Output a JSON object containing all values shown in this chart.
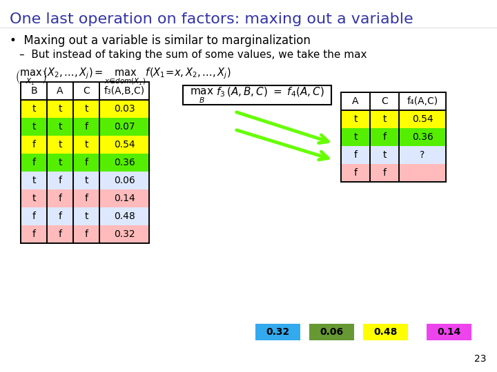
{
  "title": "One last operation on factors: maxing out a variable",
  "bullet1": "Maxing out a variable is similar to marginalization",
  "bullet2": "But instead of taking the sum of some values, we take the max",
  "title_color": "#3333aa",
  "bg_color": "#ffffff",
  "slide_number": "23",
  "left_table_headers": [
    "B",
    "A",
    "C",
    "f₃(A,B,C)"
  ],
  "left_table_rows": [
    [
      "t",
      "t",
      "t",
      "0.03"
    ],
    [
      "t",
      "t",
      "f",
      "0.07"
    ],
    [
      "f",
      "t",
      "t",
      "0.54"
    ],
    [
      "f",
      "t",
      "f",
      "0.36"
    ],
    [
      "t",
      "f",
      "t",
      "0.06"
    ],
    [
      "t",
      "f",
      "f",
      "0.14"
    ],
    [
      "f",
      "f",
      "t",
      "0.48"
    ],
    [
      "f",
      "f",
      "f",
      "0.32"
    ]
  ],
  "left_row_colors": [
    "#ffff00",
    "#55ee00",
    "#ffff00",
    "#55ee00",
    "#dde8ff",
    "#ffbbbb",
    "#dde8ff",
    "#ffbbbb"
  ],
  "right_table_headers": [
    "A",
    "C",
    "f₄(A,C)"
  ],
  "right_table_rows": [
    [
      "t",
      "t",
      "0.54"
    ],
    [
      "t",
      "f",
      "0.36"
    ],
    [
      "f",
      "t",
      "?"
    ],
    [
      "f",
      "f",
      ""
    ]
  ],
  "right_row_colors": [
    "#ffff00",
    "#55ee00",
    "#dde8ff",
    "#ffbbbb"
  ],
  "colored_boxes": [
    {
      "value": "0.32",
      "color": "#33aaee"
    },
    {
      "value": "0.06",
      "color": "#669933"
    },
    {
      "value": "0.48",
      "color": "#ffff00"
    },
    {
      "value": "0.14",
      "color": "#ee44ee"
    }
  ],
  "arrow_color": "#66ff00"
}
